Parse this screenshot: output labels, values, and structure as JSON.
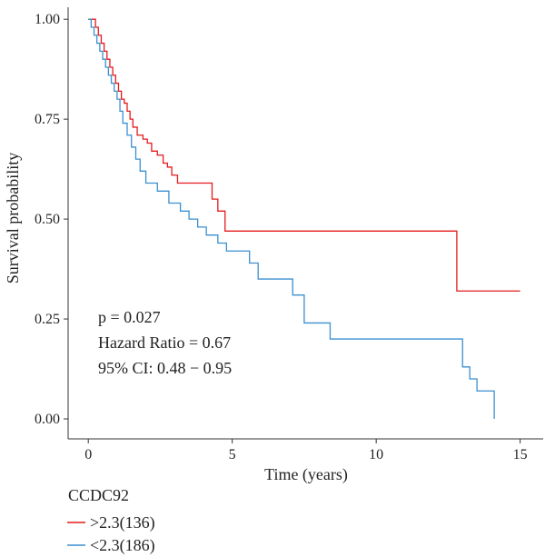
{
  "chart_data": {
    "type": "line",
    "step": true,
    "xlabel": "Time (years)",
    "ylabel": "Survival probability",
    "xlim": [
      -0.7,
      15.8
    ],
    "ylim": [
      -0.05,
      1.03
    ],
    "x_ticks": [
      0,
      5,
      10,
      15
    ],
    "y_ticks": [
      0.0,
      0.25,
      0.5,
      0.75,
      1.0
    ],
    "y_tick_labels": [
      "0.00",
      "0.25",
      "0.50",
      "0.75",
      "1.00"
    ],
    "grid": false,
    "annotations": [
      "p = 0.027",
      "Hazard Ratio = 0.67",
      "95% CI: 0.48 − 0.95"
    ],
    "legend": {
      "title": "CCDC92",
      "position": "bottom-left",
      "entries": [
        ">2.3(136)",
        "<2.3(186)"
      ]
    },
    "series": [
      {
        "name": ">2.3(136)",
        "color": "#e41a1c",
        "x": [
          0,
          0.25,
          0.35,
          0.45,
          0.55,
          0.65,
          0.75,
          0.85,
          0.95,
          1.05,
          1.15,
          1.25,
          1.35,
          1.45,
          1.55,
          1.7,
          1.9,
          2.05,
          2.2,
          2.4,
          2.6,
          2.75,
          2.9,
          3.1,
          4.3,
          4.5,
          4.75,
          12.8,
          15.0
        ],
        "y": [
          1.0,
          0.98,
          0.96,
          0.94,
          0.92,
          0.9,
          0.88,
          0.86,
          0.84,
          0.82,
          0.8,
          0.79,
          0.77,
          0.75,
          0.73,
          0.71,
          0.7,
          0.69,
          0.67,
          0.66,
          0.64,
          0.63,
          0.61,
          0.59,
          0.55,
          0.52,
          0.47,
          0.32,
          0.32
        ]
      },
      {
        "name": "<2.3(186)",
        "color": "#3a8fd0",
        "x": [
          0,
          0.1,
          0.2,
          0.3,
          0.4,
          0.5,
          0.6,
          0.7,
          0.8,
          0.9,
          1.0,
          1.1,
          1.2,
          1.35,
          1.5,
          1.65,
          1.8,
          2.0,
          2.4,
          2.8,
          3.2,
          3.5,
          3.8,
          4.1,
          4.5,
          4.8,
          5.6,
          5.9,
          7.1,
          7.5,
          8.4,
          13.0,
          13.25,
          13.5,
          14.1
        ],
        "y": [
          1.0,
          0.98,
          0.96,
          0.94,
          0.92,
          0.9,
          0.88,
          0.86,
          0.84,
          0.82,
          0.8,
          0.77,
          0.74,
          0.71,
          0.68,
          0.65,
          0.62,
          0.59,
          0.57,
          0.54,
          0.52,
          0.5,
          0.48,
          0.46,
          0.44,
          0.42,
          0.39,
          0.35,
          0.31,
          0.24,
          0.2,
          0.13,
          0.1,
          0.07,
          0.0
        ]
      }
    ]
  }
}
